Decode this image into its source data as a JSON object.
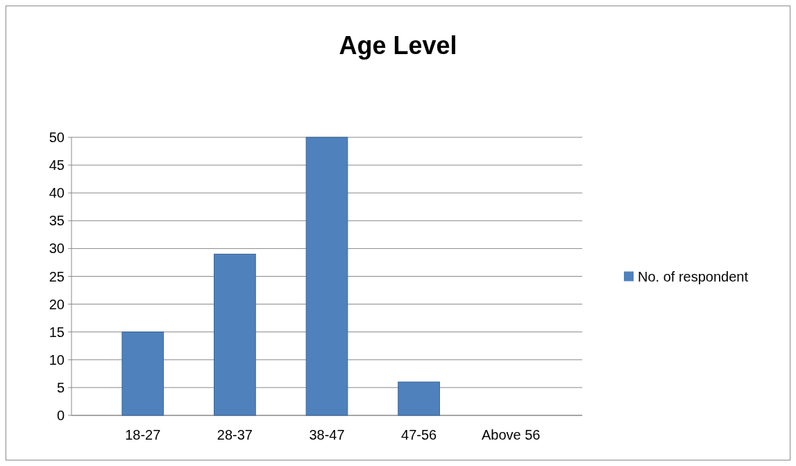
{
  "chart_data": {
    "type": "bar",
    "title": "Age Level",
    "categories": [
      "18-27",
      "28-37",
      "38-47",
      "47-56",
      "Above 56"
    ],
    "series": [
      {
        "name": "No. of respondent",
        "color": "#4f81bd",
        "values": [
          15,
          29,
          50,
          6,
          0
        ]
      }
    ],
    "ylim": [
      0,
      50
    ],
    "yticks": [
      0,
      5,
      10,
      15,
      20,
      25,
      30,
      35,
      40,
      45,
      50
    ],
    "grid": "y",
    "legend": "right"
  }
}
